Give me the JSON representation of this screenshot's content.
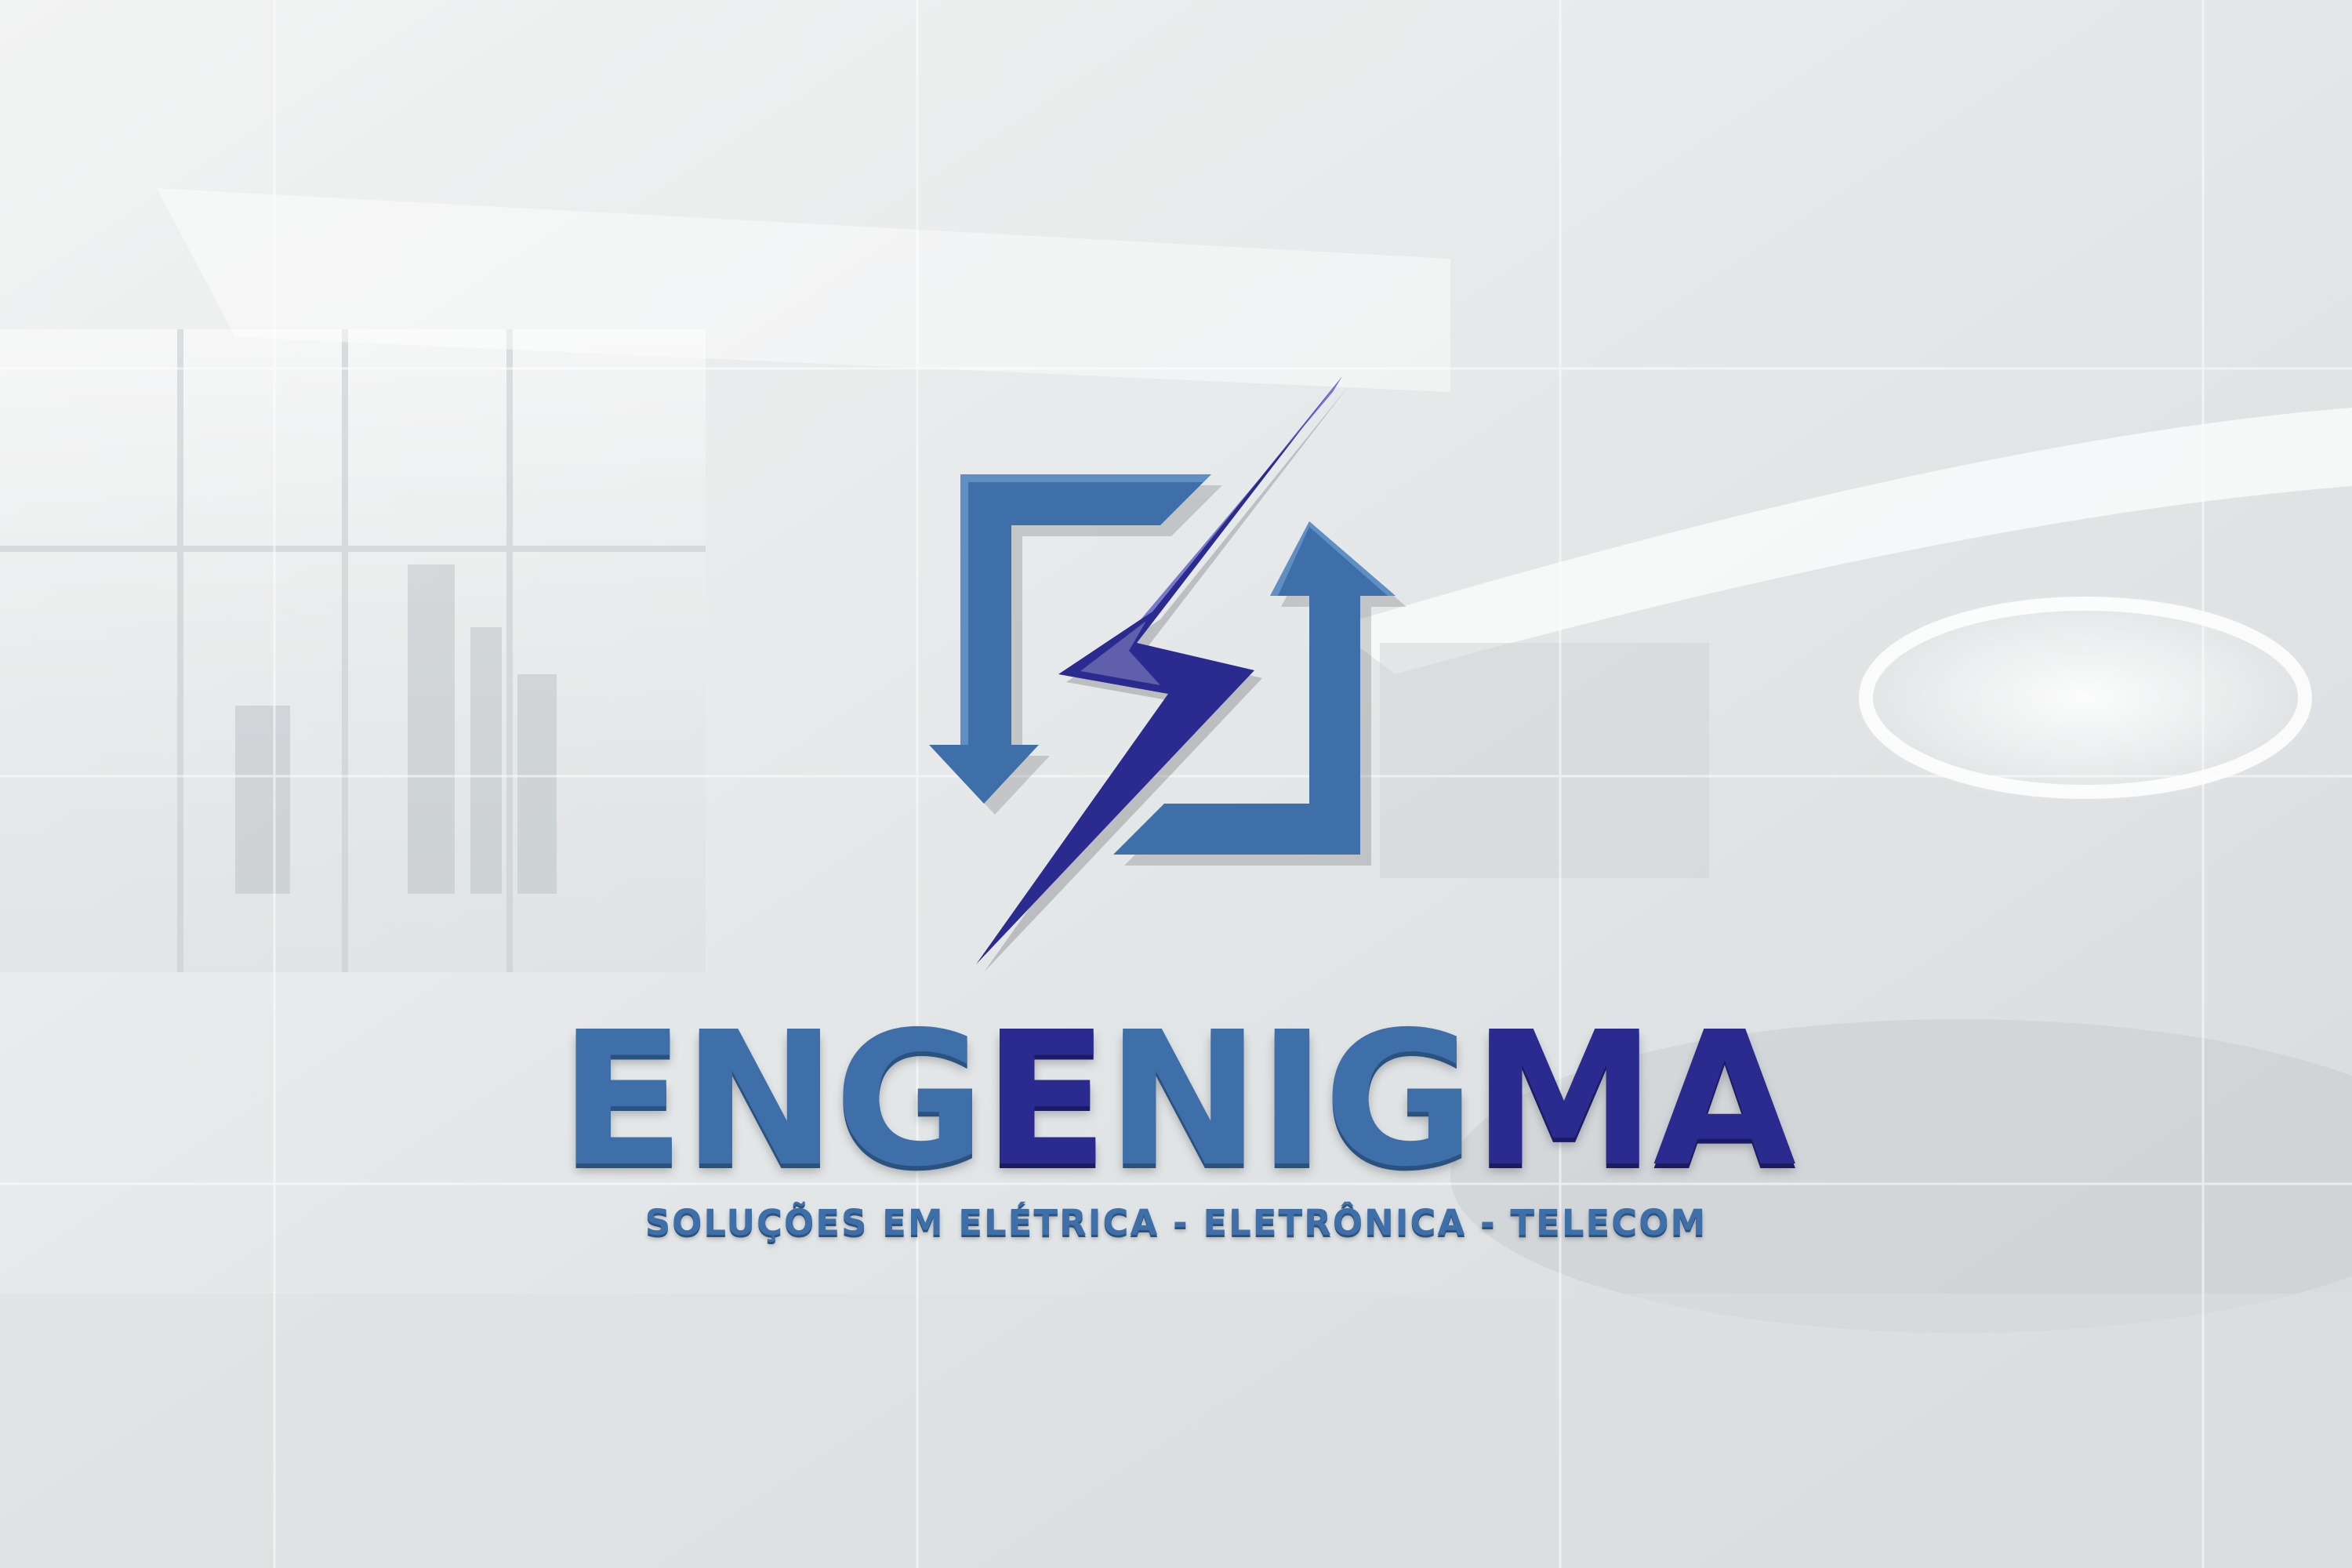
{
  "logo": {
    "icon": "lightning-bolt-house-icon",
    "brand_segments": [
      {
        "text": "ENG",
        "tone": "light"
      },
      {
        "text": "E",
        "tone": "dark"
      },
      {
        "text": "NIG",
        "tone": "light"
      },
      {
        "text": "MA",
        "tone": "dark"
      }
    ],
    "tagline": "SOLUÇÕES EM ELÉTRICA - ELETRÔNICA - TELECOM"
  },
  "colors": {
    "brand_light": "#3e6fa8",
    "brand_dark": "#2a2a8f",
    "wall": "#e6e9ea"
  }
}
